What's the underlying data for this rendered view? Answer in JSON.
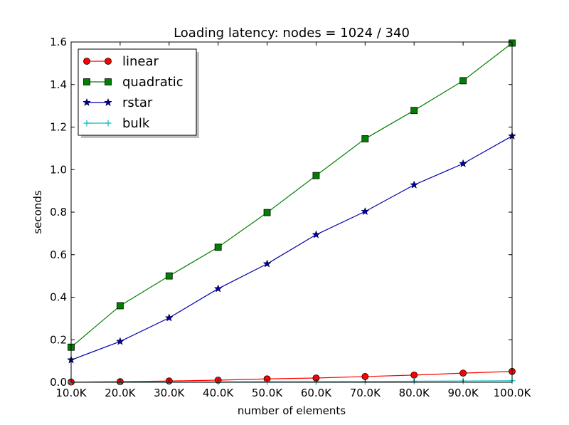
{
  "chart_data": {
    "type": "line",
    "title": "Loading latency: nodes = 1024 / 340",
    "xlabel": "number of elements",
    "ylabel": "seconds",
    "x": [
      10000,
      20000,
      30000,
      40000,
      50000,
      60000,
      70000,
      80000,
      90000,
      100000
    ],
    "x_tick_labels": [
      "10.0K",
      "20.0K",
      "30.0K",
      "40.0K",
      "50.0K",
      "60.0K",
      "70.0K",
      "80.0K",
      "90.0K",
      "100.0K"
    ],
    "y_ticks": [
      0.0,
      0.2,
      0.4,
      0.6,
      0.8,
      1.0,
      1.2,
      1.4,
      1.6
    ],
    "y_tick_labels": [
      "0.0",
      "0.2",
      "0.4",
      "0.6",
      "0.8",
      "1.0",
      "1.2",
      "1.4",
      "1.6"
    ],
    "xlim": [
      10000,
      100000
    ],
    "ylim": [
      0,
      1.6
    ],
    "grid": false,
    "legend_position": "top-left",
    "series": [
      {
        "name": "linear",
        "color": "#ff0000",
        "marker": "circle",
        "values": [
          0.001,
          0.003,
          0.006,
          0.01,
          0.016,
          0.02,
          0.027,
          0.034,
          0.043,
          0.051
        ]
      },
      {
        "name": "quadratic",
        "color": "#008000",
        "marker": "square",
        "values": [
          0.165,
          0.36,
          0.5,
          0.635,
          0.798,
          0.972,
          1.145,
          1.278,
          1.418,
          1.595
        ]
      },
      {
        "name": "rstar",
        "color": "#0000aa",
        "marker": "star",
        "values": [
          0.105,
          0.192,
          0.303,
          0.44,
          0.557,
          0.694,
          0.803,
          0.928,
          1.028,
          1.158
        ]
      },
      {
        "name": "bulk",
        "color": "#00bfbf",
        "marker": "plus",
        "values": [
          0.0005,
          0.001,
          0.0015,
          0.002,
          0.003,
          0.003,
          0.004,
          0.005,
          0.006,
          0.007
        ]
      }
    ]
  }
}
